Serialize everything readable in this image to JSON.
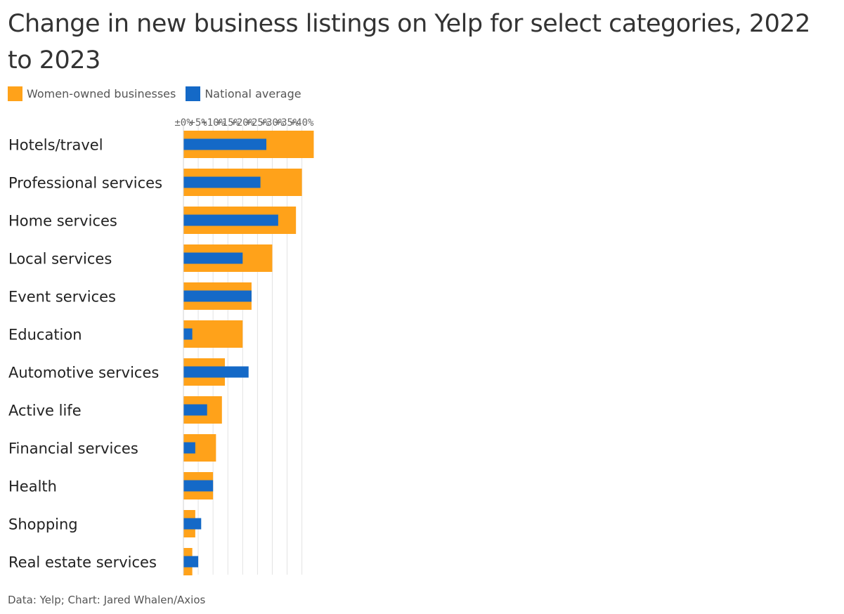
{
  "title": "Change in new business listings on Yelp for select categories, 2022 to 2023",
  "legend": [
    {
      "label": "Women-owned businesses",
      "color": "#FFA21A"
    },
    {
      "label": "National average",
      "color": "#1469C7"
    }
  ],
  "source": "Data: Yelp; Chart: Jared Whalen/Axios",
  "chart_data": {
    "type": "bar",
    "orientation": "horizontal",
    "x_ticks": [
      "±0%",
      "+5%",
      "+10%",
      "+15%",
      "+20%",
      "+25%",
      "+30%",
      "+35%",
      "+40%"
    ],
    "xlim": [
      0,
      44
    ],
    "categories": [
      "Hotels/travel",
      "Professional services",
      "Home services",
      "Local services",
      "Event services",
      "Education",
      "Automotive services",
      "Active life",
      "Financial services",
      "Health",
      "Shopping",
      "Real estate services"
    ],
    "series": [
      {
        "name": "Women-owned businesses",
        "color": "#FFA21A",
        "values": [
          44,
          40,
          38,
          30,
          23,
          20,
          14,
          13,
          11,
          10,
          4,
          3
        ]
      },
      {
        "name": "National average",
        "color": "#1469C7",
        "values": [
          28,
          26,
          32,
          20,
          23,
          3,
          22,
          8,
          4,
          10,
          6,
          5
        ]
      }
    ],
    "grid": true,
    "legend_position": "top-left"
  }
}
